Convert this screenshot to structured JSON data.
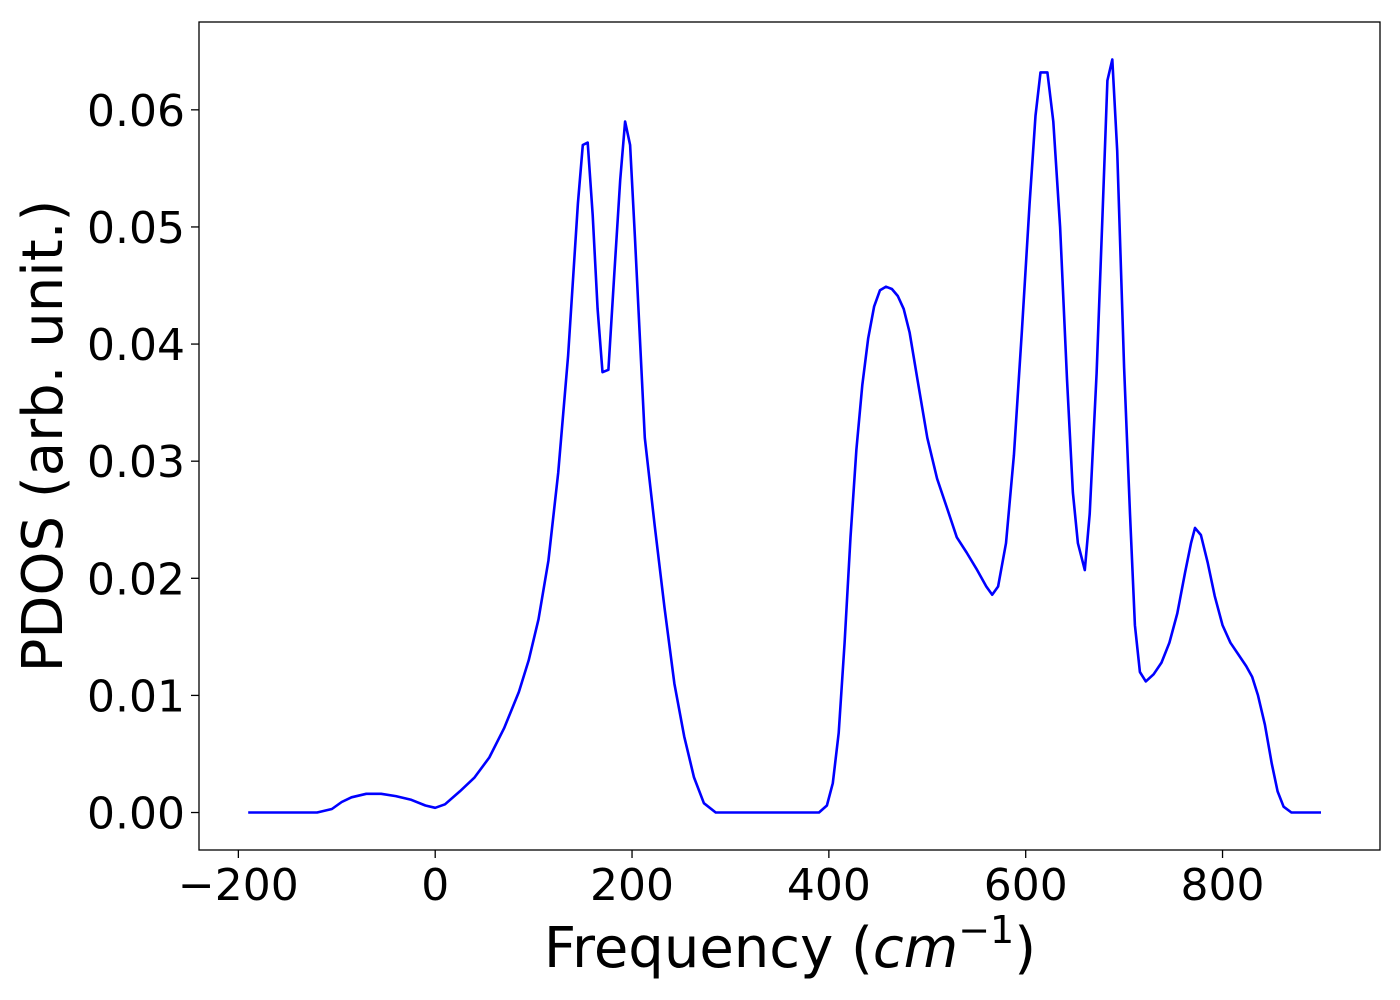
{
  "chart_data": {
    "type": "line",
    "title": "",
    "xlabel_text": "Frequency (",
    "xlabel_math_base": "cm",
    "xlabel_math_sup": "−1",
    "xlabel_close": ")",
    "ylabel": "PDOS (arb. unit.)",
    "xlim": [
      -240,
      960
    ],
    "ylim": [
      -0.0032,
      0.0675
    ],
    "x_ticks": [
      -200,
      0,
      200,
      400,
      600,
      800
    ],
    "x_tick_labels": [
      "−200",
      "0",
      "200",
      "400",
      "600",
      "800"
    ],
    "y_ticks": [
      0.0,
      0.01,
      0.02,
      0.03,
      0.04,
      0.05,
      0.06
    ],
    "y_tick_labels": [
      "0.00",
      "0.01",
      "0.02",
      "0.03",
      "0.04",
      "0.05",
      "0.06"
    ],
    "grid": false,
    "series": [
      {
        "color": "#0000ff",
        "points": [
          [
            -190,
            0.0
          ],
          [
            -120,
            0.0
          ],
          [
            -105,
            0.0003
          ],
          [
            -95,
            0.0009
          ],
          [
            -85,
            0.0013
          ],
          [
            -70,
            0.0016
          ],
          [
            -55,
            0.0016
          ],
          [
            -40,
            0.0014
          ],
          [
            -25,
            0.0011
          ],
          [
            -10,
            0.0006
          ],
          [
            0,
            0.0004
          ],
          [
            10,
            0.0007
          ],
          [
            25,
            0.0018
          ],
          [
            40,
            0.003
          ],
          [
            55,
            0.0047
          ],
          [
            70,
            0.0072
          ],
          [
            85,
            0.0103
          ],
          [
            95,
            0.013
          ],
          [
            105,
            0.0165
          ],
          [
            115,
            0.0215
          ],
          [
            125,
            0.029
          ],
          [
            135,
            0.039
          ],
          [
            145,
            0.052
          ],
          [
            150,
            0.057
          ],
          [
            155,
            0.0572
          ],
          [
            160,
            0.051
          ],
          [
            165,
            0.043
          ],
          [
            170,
            0.0376
          ],
          [
            176,
            0.0378
          ],
          [
            182,
            0.046
          ],
          [
            188,
            0.054
          ],
          [
            193,
            0.059
          ],
          [
            198,
            0.057
          ],
          [
            203,
            0.049
          ],
          [
            213,
            0.032
          ],
          [
            223,
            0.0245
          ],
          [
            233,
            0.0175
          ],
          [
            243,
            0.011
          ],
          [
            253,
            0.0065
          ],
          [
            263,
            0.003
          ],
          [
            273,
            0.0008
          ],
          [
            285,
            0.0
          ],
          [
            390,
            0.0
          ],
          [
            398,
            0.0006
          ],
          [
            404,
            0.0025
          ],
          [
            410,
            0.0068
          ],
          [
            416,
            0.0145
          ],
          [
            422,
            0.0235
          ],
          [
            428,
            0.031
          ],
          [
            434,
            0.0365
          ],
          [
            440,
            0.0405
          ],
          [
            446,
            0.0432
          ],
          [
            452,
            0.0446
          ],
          [
            458,
            0.0449
          ],
          [
            464,
            0.0447
          ],
          [
            470,
            0.0441
          ],
          [
            476,
            0.043
          ],
          [
            482,
            0.041
          ],
          [
            490,
            0.037
          ],
          [
            500,
            0.032
          ],
          [
            510,
            0.0285
          ],
          [
            520,
            0.026
          ],
          [
            530,
            0.0235
          ],
          [
            540,
            0.0222
          ],
          [
            550,
            0.0208
          ],
          [
            560,
            0.0193
          ],
          [
            566,
            0.0186
          ],
          [
            572,
            0.0193
          ],
          [
            580,
            0.023
          ],
          [
            588,
            0.0305
          ],
          [
            596,
            0.041
          ],
          [
            604,
            0.052
          ],
          [
            610,
            0.0595
          ],
          [
            615,
            0.0632
          ],
          [
            622,
            0.0632
          ],
          [
            628,
            0.059
          ],
          [
            635,
            0.05
          ],
          [
            642,
            0.037
          ],
          [
            648,
            0.0273
          ],
          [
            653,
            0.023
          ],
          [
            660,
            0.0207
          ],
          [
            665,
            0.0255
          ],
          [
            672,
            0.0375
          ],
          [
            678,
            0.051
          ],
          [
            683,
            0.0625
          ],
          [
            688,
            0.0643
          ],
          [
            693,
            0.0565
          ],
          [
            700,
            0.038
          ],
          [
            706,
            0.0255
          ],
          [
            711,
            0.016
          ],
          [
            716,
            0.012
          ],
          [
            722,
            0.0112
          ],
          [
            730,
            0.0118
          ],
          [
            738,
            0.0128
          ],
          [
            746,
            0.0145
          ],
          [
            754,
            0.017
          ],
          [
            762,
            0.0205
          ],
          [
            768,
            0.023
          ],
          [
            772,
            0.0243
          ],
          [
            778,
            0.0237
          ],
          [
            785,
            0.0213
          ],
          [
            792,
            0.0185
          ],
          [
            800,
            0.016
          ],
          [
            808,
            0.0145
          ],
          [
            816,
            0.0135
          ],
          [
            824,
            0.0125
          ],
          [
            830,
            0.0116
          ],
          [
            836,
            0.01
          ],
          [
            843,
            0.0075
          ],
          [
            850,
            0.0042
          ],
          [
            856,
            0.0018
          ],
          [
            862,
            0.0005
          ],
          [
            870,
            0.0
          ],
          [
            900,
            0.0
          ]
        ]
      }
    ]
  }
}
